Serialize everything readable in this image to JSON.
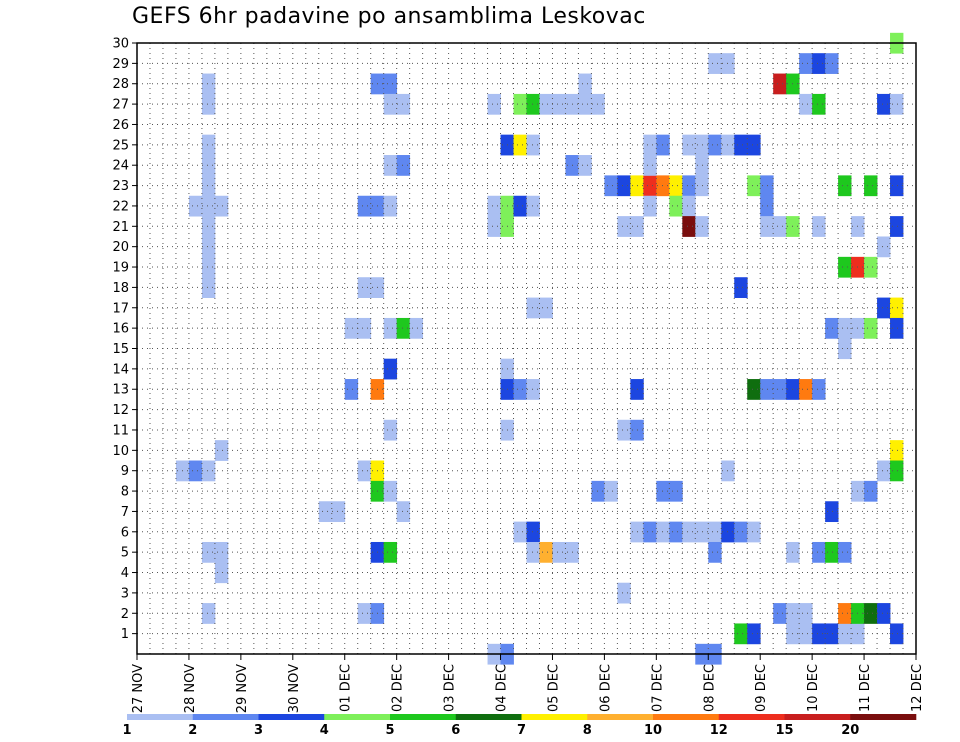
{
  "chart_data": {
    "type": "heatmap",
    "title": "GEFS 6hr padavine po ansamblima Leskovac",
    "y_ticks": [
      1,
      2,
      3,
      4,
      5,
      6,
      7,
      8,
      9,
      10,
      11,
      12,
      13,
      14,
      15,
      16,
      17,
      18,
      19,
      20,
      21,
      22,
      23,
      24,
      25,
      26,
      27,
      28,
      29,
      30
    ],
    "y_range": [
      0,
      30
    ],
    "x_tick_labels": [
      "27 NOV",
      "28 NOV",
      "29 NOV",
      "30 NOV",
      "01 DEC",
      "02 DEC",
      "03 DEC",
      "04 DEC",
      "05 DEC",
      "06 DEC",
      "07 DEC",
      "08 DEC",
      "09 DEC",
      "10 DEC",
      "11 DEC",
      "12 DEC"
    ],
    "x_steps_per_day": 4,
    "x_range_steps": [
      0,
      60
    ],
    "grid": true,
    "legend": {
      "position": "bottom",
      "labels": [
        "1",
        "2",
        "3",
        "4",
        "5",
        "6",
        "7",
        "8",
        "10",
        "12",
        "15",
        "20"
      ],
      "colors": [
        "#aabff2",
        "#5f87f0",
        "#1c46e0",
        "#7ef05a",
        "#1ec81e",
        "#0f6e0f",
        "#fff000",
        "#ffb030",
        "#ff7a10",
        "#ee2e1e",
        "#c81e1e",
        "#7a0e0e"
      ]
    },
    "cells": [
      [
        3,
        9,
        0
      ],
      [
        4,
        9,
        1
      ],
      [
        5,
        9,
        0
      ],
      [
        4,
        22,
        0
      ],
      [
        5,
        22,
        0
      ],
      [
        6,
        22,
        0
      ],
      [
        5,
        28,
        0
      ],
      [
        5,
        27,
        0
      ],
      [
        5,
        25,
        0
      ],
      [
        5,
        24,
        0
      ],
      [
        5,
        23,
        0
      ],
      [
        5,
        19,
        0
      ],
      [
        5,
        18,
        0
      ],
      [
        5,
        21,
        0
      ],
      [
        5,
        20,
        0
      ],
      [
        5,
        2,
        0
      ],
      [
        5,
        5,
        0
      ],
      [
        6,
        5,
        0
      ],
      [
        6,
        4,
        0
      ],
      [
        6,
        10,
        0
      ],
      [
        14,
        7,
        0
      ],
      [
        15,
        7,
        0
      ],
      [
        16,
        16,
        0
      ],
      [
        17,
        16,
        0
      ],
      [
        16,
        13,
        1
      ],
      [
        17,
        18,
        0
      ],
      [
        18,
        18,
        0
      ],
      [
        17,
        9,
        0
      ],
      [
        17,
        2,
        0
      ],
      [
        18,
        2,
        1
      ],
      [
        17,
        22,
        1
      ],
      [
        18,
        22,
        1
      ],
      [
        19,
        22,
        0
      ],
      [
        18,
        28,
        1
      ],
      [
        19,
        28,
        1
      ],
      [
        19,
        27,
        0
      ],
      [
        20,
        27,
        0
      ],
      [
        18,
        13,
        8
      ],
      [
        18,
        9,
        6
      ],
      [
        18,
        8,
        4
      ],
      [
        18,
        5,
        2
      ],
      [
        19,
        5,
        4
      ],
      [
        19,
        8,
        0
      ],
      [
        19,
        24,
        0
      ],
      [
        20,
        24,
        1
      ],
      [
        19,
        16,
        0
      ],
      [
        20,
        16,
        4
      ],
      [
        21,
        16,
        0
      ],
      [
        19,
        14,
        2
      ],
      [
        19,
        11,
        0
      ],
      [
        20,
        7,
        0
      ],
      [
        27,
        22,
        0
      ],
      [
        27,
        21,
        0
      ],
      [
        28,
        21,
        3
      ],
      [
        28,
        22,
        3
      ],
      [
        29,
        22,
        2
      ],
      [
        30,
        22,
        0
      ],
      [
        27,
        27,
        0
      ],
      [
        28,
        14,
        0
      ],
      [
        28,
        11,
        0
      ],
      [
        27,
        0,
        0
      ],
      [
        28,
        0,
        1
      ],
      [
        28,
        25,
        2
      ],
      [
        29,
        25,
        6
      ],
      [
        30,
        25,
        0
      ],
      [
        29,
        27,
        3
      ],
      [
        30,
        27,
        4
      ],
      [
        31,
        27,
        0
      ],
      [
        32,
        27,
        0
      ],
      [
        33,
        27,
        0
      ],
      [
        34,
        27,
        0
      ],
      [
        35,
        27,
        0
      ],
      [
        28,
        13,
        2
      ],
      [
        29,
        13,
        1
      ],
      [
        30,
        13,
        0
      ],
      [
        29,
        6,
        0
      ],
      [
        30,
        6,
        2
      ],
      [
        30,
        5,
        0
      ],
      [
        31,
        5,
        7
      ],
      [
        32,
        5,
        0
      ],
      [
        33,
        5,
        0
      ],
      [
        30,
        17,
        0
      ],
      [
        31,
        17,
        0
      ],
      [
        33,
        24,
        1
      ],
      [
        34,
        24,
        0
      ],
      [
        34,
        28,
        0
      ],
      [
        35,
        8,
        1
      ],
      [
        36,
        8,
        0
      ],
      [
        37,
        11,
        0
      ],
      [
        38,
        11,
        1
      ],
      [
        37,
        21,
        0
      ],
      [
        38,
        21,
        0
      ],
      [
        37,
        3,
        0
      ],
      [
        36,
        23,
        1
      ],
      [
        37,
        23,
        2
      ],
      [
        38,
        23,
        6
      ],
      [
        39,
        23,
        9
      ],
      [
        40,
        23,
        8
      ],
      [
        41,
        23,
        6
      ],
      [
        42,
        23,
        1
      ],
      [
        43,
        23,
        0
      ],
      [
        39,
        24,
        0
      ],
      [
        39,
        25,
        0
      ],
      [
        40,
        25,
        1
      ],
      [
        39,
        22,
        0
      ],
      [
        38,
        13,
        2
      ],
      [
        38,
        6,
        0
      ],
      [
        39,
        6,
        1
      ],
      [
        40,
        6,
        0
      ],
      [
        41,
        6,
        1
      ],
      [
        42,
        6,
        0
      ],
      [
        43,
        6,
        0
      ],
      [
        44,
        6,
        0
      ],
      [
        45,
        6,
        2
      ],
      [
        46,
        6,
        1
      ],
      [
        47,
        6,
        0
      ],
      [
        40,
        8,
        1
      ],
      [
        41,
        8,
        1
      ],
      [
        41,
        22,
        3
      ],
      [
        42,
        22,
        0
      ],
      [
        42,
        21,
        11
      ],
      [
        43,
        21,
        0
      ],
      [
        43,
        24,
        0
      ],
      [
        42,
        25,
        0
      ],
      [
        43,
        25,
        0
      ],
      [
        44,
        25,
        1
      ],
      [
        45,
        25,
        0
      ],
      [
        46,
        25,
        2
      ],
      [
        47,
        25,
        2
      ],
      [
        44,
        5,
        1
      ],
      [
        43,
        0,
        1
      ],
      [
        44,
        0,
        1
      ],
      [
        44,
        29,
        0
      ],
      [
        45,
        29,
        0
      ],
      [
        45,
        9,
        0
      ],
      [
        46,
        18,
        2
      ],
      [
        46,
        1,
        4
      ],
      [
        47,
        1,
        2
      ],
      [
        47,
        23,
        3
      ],
      [
        48,
        23,
        1
      ],
      [
        48,
        22,
        1
      ],
      [
        48,
        21,
        0
      ],
      [
        47,
        13,
        5
      ],
      [
        48,
        13,
        1
      ],
      [
        49,
        13,
        1
      ],
      [
        50,
        13,
        2
      ],
      [
        51,
        13,
        8
      ],
      [
        52,
        13,
        1
      ],
      [
        49,
        28,
        10
      ],
      [
        50,
        28,
        4
      ],
      [
        51,
        27,
        0
      ],
      [
        52,
        27,
        4
      ],
      [
        49,
        2,
        1
      ],
      [
        50,
        2,
        0
      ],
      [
        51,
        2,
        0
      ],
      [
        50,
        1,
        0
      ],
      [
        51,
        1,
        0
      ],
      [
        52,
        1,
        2
      ],
      [
        53,
        1,
        2
      ],
      [
        54,
        1,
        0
      ],
      [
        55,
        1,
        0
      ],
      [
        51,
        29,
        1
      ],
      [
        52,
        29,
        2
      ],
      [
        53,
        29,
        1
      ],
      [
        49,
        21,
        0
      ],
      [
        50,
        21,
        3
      ],
      [
        52,
        21,
        0
      ],
      [
        50,
        5,
        0
      ],
      [
        52,
        5,
        1
      ],
      [
        53,
        5,
        4
      ],
      [
        54,
        5,
        1
      ],
      [
        53,
        16,
        1
      ],
      [
        54,
        16,
        0
      ],
      [
        55,
        16,
        0
      ],
      [
        56,
        16,
        3
      ],
      [
        54,
        15,
        0
      ],
      [
        54,
        23,
        4
      ],
      [
        56,
        23,
        4
      ],
      [
        55,
        8,
        0
      ],
      [
        56,
        8,
        1
      ],
      [
        53,
        7,
        2
      ],
      [
        54,
        19,
        4
      ],
      [
        55,
        19,
        9
      ],
      [
        56,
        19,
        3
      ],
      [
        54,
        2,
        8
      ],
      [
        55,
        2,
        4
      ],
      [
        56,
        2,
        5
      ],
      [
        57,
        2,
        2
      ],
      [
        55,
        21,
        0
      ],
      [
        57,
        20,
        0
      ],
      [
        57,
        27,
        2
      ],
      [
        58,
        27,
        0
      ],
      [
        57,
        17,
        2
      ],
      [
        58,
        17,
        6
      ],
      [
        58,
        16,
        2
      ],
      [
        58,
        23,
        2
      ],
      [
        58,
        21,
        2
      ],
      [
        58,
        10,
        6
      ],
      [
        57,
        9,
        0
      ],
      [
        58,
        9,
        4
      ],
      [
        58,
        30,
        3
      ],
      [
        58,
        1,
        2
      ]
    ]
  }
}
